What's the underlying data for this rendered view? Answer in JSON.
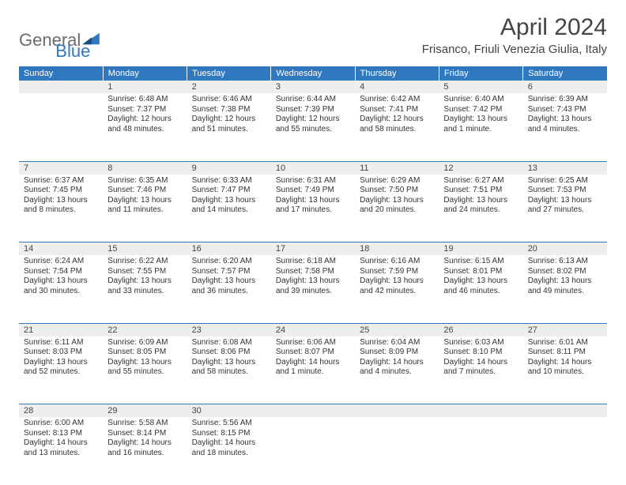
{
  "logo": {
    "general": "General",
    "blue": "Blue"
  },
  "title": "April 2024",
  "location": "Frisanco, Friuli Venezia Giulia, Italy",
  "day_headers": [
    "Sunday",
    "Monday",
    "Tuesday",
    "Wednesday",
    "Thursday",
    "Friday",
    "Saturday"
  ],
  "colors": {
    "accent": "#2f78c0",
    "header_text": "#ffffff",
    "grey_row": "#eeeeee",
    "text": "#333333",
    "title_text": "#444444",
    "logo_grey": "#6b6b6b"
  },
  "weeks": [
    {
      "nums": [
        "",
        "1",
        "2",
        "3",
        "4",
        "5",
        "6"
      ],
      "cells": [
        {
          "sunrise": "",
          "sunset": "",
          "daylight1": "",
          "daylight2": ""
        },
        {
          "sunrise": "Sunrise: 6:48 AM",
          "sunset": "Sunset: 7:37 PM",
          "daylight1": "Daylight: 12 hours",
          "daylight2": "and 48 minutes."
        },
        {
          "sunrise": "Sunrise: 6:46 AM",
          "sunset": "Sunset: 7:38 PM",
          "daylight1": "Daylight: 12 hours",
          "daylight2": "and 51 minutes."
        },
        {
          "sunrise": "Sunrise: 6:44 AM",
          "sunset": "Sunset: 7:39 PM",
          "daylight1": "Daylight: 12 hours",
          "daylight2": "and 55 minutes."
        },
        {
          "sunrise": "Sunrise: 6:42 AM",
          "sunset": "Sunset: 7:41 PM",
          "daylight1": "Daylight: 12 hours",
          "daylight2": "and 58 minutes."
        },
        {
          "sunrise": "Sunrise: 6:40 AM",
          "sunset": "Sunset: 7:42 PM",
          "daylight1": "Daylight: 13 hours",
          "daylight2": "and 1 minute."
        },
        {
          "sunrise": "Sunrise: 6:39 AM",
          "sunset": "Sunset: 7:43 PM",
          "daylight1": "Daylight: 13 hours",
          "daylight2": "and 4 minutes."
        }
      ]
    },
    {
      "nums": [
        "7",
        "8",
        "9",
        "10",
        "11",
        "12",
        "13"
      ],
      "cells": [
        {
          "sunrise": "Sunrise: 6:37 AM",
          "sunset": "Sunset: 7:45 PM",
          "daylight1": "Daylight: 13 hours",
          "daylight2": "and 8 minutes."
        },
        {
          "sunrise": "Sunrise: 6:35 AM",
          "sunset": "Sunset: 7:46 PM",
          "daylight1": "Daylight: 13 hours",
          "daylight2": "and 11 minutes."
        },
        {
          "sunrise": "Sunrise: 6:33 AM",
          "sunset": "Sunset: 7:47 PM",
          "daylight1": "Daylight: 13 hours",
          "daylight2": "and 14 minutes."
        },
        {
          "sunrise": "Sunrise: 6:31 AM",
          "sunset": "Sunset: 7:49 PM",
          "daylight1": "Daylight: 13 hours",
          "daylight2": "and 17 minutes."
        },
        {
          "sunrise": "Sunrise: 6:29 AM",
          "sunset": "Sunset: 7:50 PM",
          "daylight1": "Daylight: 13 hours",
          "daylight2": "and 20 minutes."
        },
        {
          "sunrise": "Sunrise: 6:27 AM",
          "sunset": "Sunset: 7:51 PM",
          "daylight1": "Daylight: 13 hours",
          "daylight2": "and 24 minutes."
        },
        {
          "sunrise": "Sunrise: 6:25 AM",
          "sunset": "Sunset: 7:53 PM",
          "daylight1": "Daylight: 13 hours",
          "daylight2": "and 27 minutes."
        }
      ]
    },
    {
      "nums": [
        "14",
        "15",
        "16",
        "17",
        "18",
        "19",
        "20"
      ],
      "cells": [
        {
          "sunrise": "Sunrise: 6:24 AM",
          "sunset": "Sunset: 7:54 PM",
          "daylight1": "Daylight: 13 hours",
          "daylight2": "and 30 minutes."
        },
        {
          "sunrise": "Sunrise: 6:22 AM",
          "sunset": "Sunset: 7:55 PM",
          "daylight1": "Daylight: 13 hours",
          "daylight2": "and 33 minutes."
        },
        {
          "sunrise": "Sunrise: 6:20 AM",
          "sunset": "Sunset: 7:57 PM",
          "daylight1": "Daylight: 13 hours",
          "daylight2": "and 36 minutes."
        },
        {
          "sunrise": "Sunrise: 6:18 AM",
          "sunset": "Sunset: 7:58 PM",
          "daylight1": "Daylight: 13 hours",
          "daylight2": "and 39 minutes."
        },
        {
          "sunrise": "Sunrise: 6:16 AM",
          "sunset": "Sunset: 7:59 PM",
          "daylight1": "Daylight: 13 hours",
          "daylight2": "and 42 minutes."
        },
        {
          "sunrise": "Sunrise: 6:15 AM",
          "sunset": "Sunset: 8:01 PM",
          "daylight1": "Daylight: 13 hours",
          "daylight2": "and 46 minutes."
        },
        {
          "sunrise": "Sunrise: 6:13 AM",
          "sunset": "Sunset: 8:02 PM",
          "daylight1": "Daylight: 13 hours",
          "daylight2": "and 49 minutes."
        }
      ]
    },
    {
      "nums": [
        "21",
        "22",
        "23",
        "24",
        "25",
        "26",
        "27"
      ],
      "cells": [
        {
          "sunrise": "Sunrise: 6:11 AM",
          "sunset": "Sunset: 8:03 PM",
          "daylight1": "Daylight: 13 hours",
          "daylight2": "and 52 minutes."
        },
        {
          "sunrise": "Sunrise: 6:09 AM",
          "sunset": "Sunset: 8:05 PM",
          "daylight1": "Daylight: 13 hours",
          "daylight2": "and 55 minutes."
        },
        {
          "sunrise": "Sunrise: 6:08 AM",
          "sunset": "Sunset: 8:06 PM",
          "daylight1": "Daylight: 13 hours",
          "daylight2": "and 58 minutes."
        },
        {
          "sunrise": "Sunrise: 6:06 AM",
          "sunset": "Sunset: 8:07 PM",
          "daylight1": "Daylight: 14 hours",
          "daylight2": "and 1 minute."
        },
        {
          "sunrise": "Sunrise: 6:04 AM",
          "sunset": "Sunset: 8:09 PM",
          "daylight1": "Daylight: 14 hours",
          "daylight2": "and 4 minutes."
        },
        {
          "sunrise": "Sunrise: 6:03 AM",
          "sunset": "Sunset: 8:10 PM",
          "daylight1": "Daylight: 14 hours",
          "daylight2": "and 7 minutes."
        },
        {
          "sunrise": "Sunrise: 6:01 AM",
          "sunset": "Sunset: 8:11 PM",
          "daylight1": "Daylight: 14 hours",
          "daylight2": "and 10 minutes."
        }
      ]
    },
    {
      "nums": [
        "28",
        "29",
        "30",
        "",
        "",
        "",
        ""
      ],
      "cells": [
        {
          "sunrise": "Sunrise: 6:00 AM",
          "sunset": "Sunset: 8:13 PM",
          "daylight1": "Daylight: 14 hours",
          "daylight2": "and 13 minutes."
        },
        {
          "sunrise": "Sunrise: 5:58 AM",
          "sunset": "Sunset: 8:14 PM",
          "daylight1": "Daylight: 14 hours",
          "daylight2": "and 16 minutes."
        },
        {
          "sunrise": "Sunrise: 5:56 AM",
          "sunset": "Sunset: 8:15 PM",
          "daylight1": "Daylight: 14 hours",
          "daylight2": "and 18 minutes."
        },
        {
          "sunrise": "",
          "sunset": "",
          "daylight1": "",
          "daylight2": ""
        },
        {
          "sunrise": "",
          "sunset": "",
          "daylight1": "",
          "daylight2": ""
        },
        {
          "sunrise": "",
          "sunset": "",
          "daylight1": "",
          "daylight2": ""
        },
        {
          "sunrise": "",
          "sunset": "",
          "daylight1": "",
          "daylight2": ""
        }
      ]
    }
  ]
}
